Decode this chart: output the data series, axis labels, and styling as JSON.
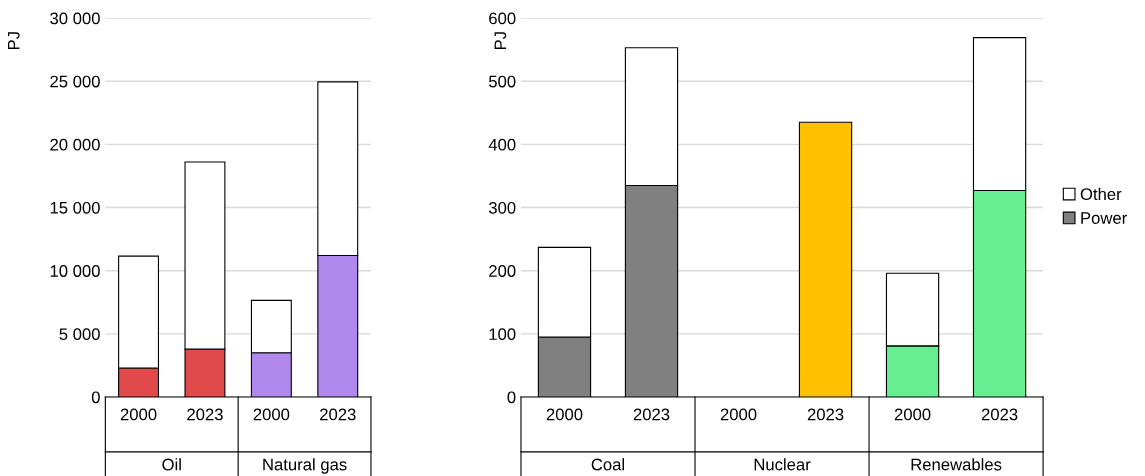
{
  "chart_data": [
    {
      "type": "bar",
      "stacked": true,
      "categories": [
        "2000",
        "2023",
        "2000",
        "2023"
      ],
      "annotations": [
        "Oil",
        "Natural gas"
      ],
      "ylabel": "PJ",
      "ylim": [
        0,
        30000
      ],
      "yticks": [
        0,
        {
          "value": 5000,
          "label": "5 000"
        },
        {
          "value": 10000,
          "label": "10 000"
        },
        {
          "value": 15000,
          "label": "15 000"
        },
        {
          "value": 20000,
          "label": "20 000"
        },
        {
          "value": 25000,
          "label": "25 000"
        },
        {
          "value": 30000,
          "label": "30 000"
        }
      ],
      "grid": "y",
      "legend": false,
      "series": [
        {
          "colors": [
            "#e04a4a",
            "#e04a4a",
            "#b088ee",
            "#b088ee"
          ],
          "values": [
            2300,
            3800,
            3500,
            11200
          ]
        },
        {
          "color": "#ffffff",
          "values": [
            8850,
            14800,
            4150,
            13750
          ]
        }
      ]
    },
    {
      "type": "bar",
      "stacked": true,
      "categories": [
        "2000",
        "2023",
        "2000",
        "2023",
        "2000",
        "2023"
      ],
      "annotations": [
        "Coal",
        "Nuclear",
        "Renewables"
      ],
      "ylabel": "PJ",
      "ylim": [
        0,
        600
      ],
      "yticks": [
        0,
        100,
        200,
        300,
        400,
        500,
        600
      ],
      "grid": "y",
      "legend": "right",
      "series": [
        {
          "name": "Power",
          "color": "#808080",
          "colors": [
            "#808080",
            "#808080",
            null,
            "#ffc000",
            "#66ee90",
            "#66ee90"
          ],
          "values": [
            95,
            335,
            null,
            435,
            81,
            327
          ]
        },
        {
          "name": "Other",
          "color": "#ffffff",
          "values": [
            142,
            218,
            null,
            null,
            115,
            242
          ]
        }
      ]
    }
  ]
}
